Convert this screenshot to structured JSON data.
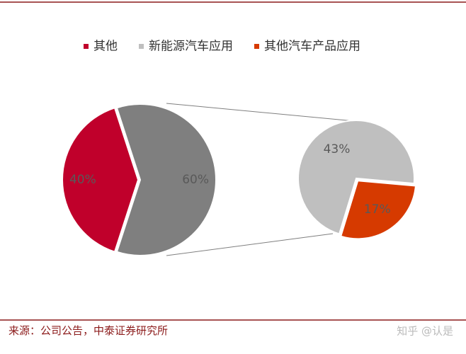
{
  "chart_data": {
    "type": "pie-of-pie",
    "pie": {
      "categories": [
        "其他",
        null
      ],
      "values": [
        40,
        60
      ],
      "value_labels": [
        "40%",
        "60%"
      ],
      "colors": [
        "#c0002b",
        "#7f7f7f"
      ]
    },
    "subpie": {
      "categories": [
        "新能源汽车应用",
        "其他汽车产品应用"
      ],
      "values": [
        43,
        17
      ],
      "value_labels": [
        "43%",
        "17%"
      ],
      "colors": [
        "#bfbfbf",
        "#d63a00"
      ]
    },
    "source": "来源：公司公告，中泰证券研究所",
    "watermark": "知乎 @认是"
  }
}
